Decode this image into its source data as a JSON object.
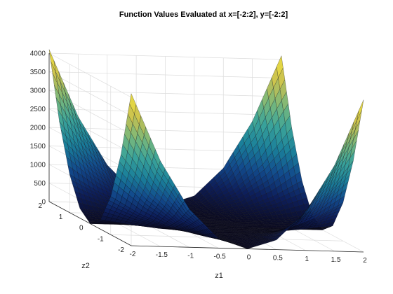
{
  "chart_data": {
    "type": "surface",
    "title": "Function Values Evaluated at x=[-2:2], y=[-2:2]",
    "xlabel": "z1",
    "ylabel": "z2",
    "zlabel": "",
    "xlim": [
      -2,
      2
    ],
    "ylim": [
      -2,
      2
    ],
    "zlim": [
      0,
      4000
    ],
    "x_ticks": [
      "-2",
      "-1.5",
      "-1",
      "-0.5",
      "0",
      "0.5",
      "1",
      "1.5",
      "2"
    ],
    "y_ticks": [
      "-2",
      "-1",
      "0",
      "1",
      "2"
    ],
    "z_ticks": [
      "0",
      "500",
      "1000",
      "1500",
      "2000",
      "2500",
      "3000",
      "3500",
      "4000"
    ],
    "grid": true,
    "colormap": "parula",
    "colormap_stops": [
      "#0b0a20",
      "#0d1e5a",
      "#124a8c",
      "#1a7f9a",
      "#3aa39a",
      "#7ab87a",
      "#c8c050",
      "#f0e040"
    ],
    "surface": {
      "x_grid": [
        -2,
        -1.5,
        -1,
        -0.5,
        0,
        0.5,
        1,
        1.5,
        2
      ],
      "y_grid": [
        -2,
        -1.5,
        -1,
        -0.5,
        0,
        0.5,
        1,
        1.5,
        2
      ],
      "z": [
        [
          4100,
          2310,
          1030,
          260,
          0,
          260,
          1030,
          2310,
          4100
        ],
        [
          2310,
          1300,
          580,
          150,
          0,
          150,
          580,
          1300,
          2310
        ],
        [
          1030,
          580,
          260,
          65,
          0,
          65,
          260,
          580,
          1030
        ],
        [
          260,
          150,
          65,
          16,
          0,
          16,
          65,
          150,
          260
        ],
        [
          0,
          0,
          0,
          0,
          0,
          0,
          0,
          0,
          0
        ],
        [
          260,
          150,
          65,
          16,
          0,
          16,
          65,
          150,
          260
        ],
        [
          1030,
          580,
          260,
          65,
          0,
          65,
          260,
          580,
          1030
        ],
        [
          2310,
          1300,
          580,
          150,
          0,
          150,
          580,
          1300,
          2310
        ],
        [
          4100,
          2310,
          1030,
          260,
          0,
          260,
          1030,
          2310,
          4100
        ]
      ]
    }
  }
}
